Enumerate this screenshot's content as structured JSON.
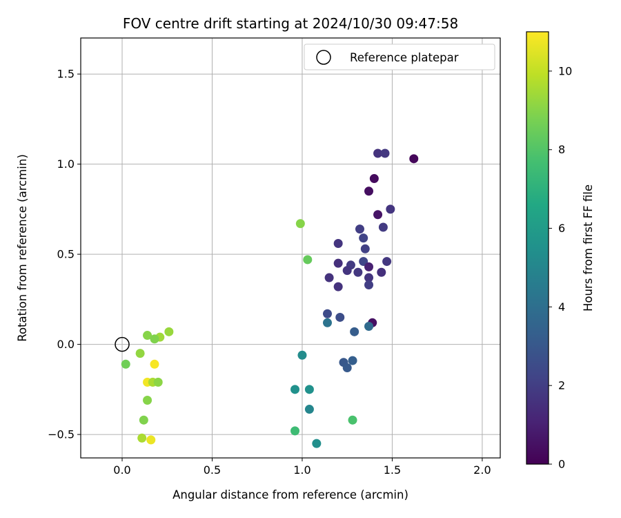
{
  "chart_data": {
    "type": "scatter",
    "title": "FOV centre drift starting at 2024/10/30 09:47:58",
    "xlabel": "Angular distance from reference (arcmin)",
    "ylabel": "Rotation from reference (arcmin)",
    "xlim": [
      -0.23,
      2.1
    ],
    "ylim": [
      -0.63,
      1.7
    ],
    "xticks": [
      0.0,
      0.5,
      1.0,
      1.5,
      2.0
    ],
    "xtick_labels": [
      "0.0",
      "0.5",
      "1.0",
      "1.5",
      "2.0"
    ],
    "yticks": [
      -0.5,
      0.0,
      0.5,
      1.0,
      1.5
    ],
    "ytick_labels": [
      "−0.5",
      "0.0",
      "0.5",
      "1.0",
      "1.5"
    ],
    "grid": true,
    "legend": {
      "position": "top-right",
      "entries": [
        "Reference platepar"
      ]
    },
    "reference_point": {
      "x": 0.0,
      "y": 0.0
    },
    "colorbar": {
      "label": "Hours from first FF file",
      "colormap": "viridis",
      "range": [
        0,
        11
      ],
      "ticks": [
        0,
        2,
        4,
        6,
        8,
        10
      ],
      "tick_labels": [
        "0",
        "2",
        "4",
        "6",
        "8",
        "10"
      ]
    },
    "points": [
      {
        "x": 1.62,
        "y": 1.03,
        "hours": 0.2
      },
      {
        "x": 1.4,
        "y": 0.92,
        "hours": 0.3
      },
      {
        "x": 1.37,
        "y": 0.85,
        "hours": 0.4
      },
      {
        "x": 1.42,
        "y": 0.72,
        "hours": 0.6
      },
      {
        "x": 1.39,
        "y": 0.12,
        "hours": 0.5
      },
      {
        "x": 1.42,
        "y": 1.06,
        "hours": 1.6
      },
      {
        "x": 1.46,
        "y": 1.06,
        "hours": 1.8
      },
      {
        "x": 1.49,
        "y": 0.75,
        "hours": 1.7
      },
      {
        "x": 1.45,
        "y": 0.65,
        "hours": 1.9
      },
      {
        "x": 1.32,
        "y": 0.64,
        "hours": 2.0
      },
      {
        "x": 1.34,
        "y": 0.59,
        "hours": 2.2
      },
      {
        "x": 1.2,
        "y": 0.56,
        "hours": 1.7
      },
      {
        "x": 1.35,
        "y": 0.53,
        "hours": 2.1
      },
      {
        "x": 1.47,
        "y": 0.46,
        "hours": 1.8
      },
      {
        "x": 1.34,
        "y": 0.46,
        "hours": 2.3
      },
      {
        "x": 1.2,
        "y": 0.45,
        "hours": 1.5
      },
      {
        "x": 1.27,
        "y": 0.44,
        "hours": 1.9
      },
      {
        "x": 1.37,
        "y": 0.43,
        "hours": 1.0
      },
      {
        "x": 1.25,
        "y": 0.41,
        "hours": 1.7
      },
      {
        "x": 1.31,
        "y": 0.4,
        "hours": 1.8
      },
      {
        "x": 1.44,
        "y": 0.4,
        "hours": 1.5
      },
      {
        "x": 1.15,
        "y": 0.37,
        "hours": 1.6
      },
      {
        "x": 1.37,
        "y": 0.37,
        "hours": 1.7
      },
      {
        "x": 1.37,
        "y": 0.33,
        "hours": 2.0
      },
      {
        "x": 1.2,
        "y": 0.32,
        "hours": 1.6
      },
      {
        "x": 1.14,
        "y": 0.17,
        "hours": 2.5
      },
      {
        "x": 1.21,
        "y": 0.15,
        "hours": 2.6
      },
      {
        "x": 1.14,
        "y": 0.12,
        "hours": 4.2
      },
      {
        "x": 1.37,
        "y": 0.1,
        "hours": 3.8
      },
      {
        "x": 1.29,
        "y": 0.07,
        "hours": 3.2
      },
      {
        "x": 1.0,
        "y": -0.06,
        "hours": 5.3
      },
      {
        "x": 1.23,
        "y": -0.1,
        "hours": 3.0
      },
      {
        "x": 1.28,
        "y": -0.09,
        "hours": 3.3
      },
      {
        "x": 1.25,
        "y": -0.13,
        "hours": 3.1
      },
      {
        "x": 0.96,
        "y": -0.25,
        "hours": 5.5
      },
      {
        "x": 1.04,
        "y": -0.25,
        "hours": 5.5
      },
      {
        "x": 1.04,
        "y": -0.36,
        "hours": 5.0
      },
      {
        "x": 1.28,
        "y": -0.42,
        "hours": 7.8
      },
      {
        "x": 0.96,
        "y": -0.48,
        "hours": 7.5
      },
      {
        "x": 1.08,
        "y": -0.55,
        "hours": 5.4
      },
      {
        "x": 0.99,
        "y": 0.67,
        "hours": 9.0
      },
      {
        "x": 1.03,
        "y": 0.47,
        "hours": 8.4
      },
      {
        "x": 0.26,
        "y": 0.07,
        "hours": 9.3
      },
      {
        "x": 0.14,
        "y": 0.05,
        "hours": 9.0
      },
      {
        "x": 0.21,
        "y": 0.04,
        "hours": 9.4
      },
      {
        "x": 0.18,
        "y": 0.03,
        "hours": 8.9
      },
      {
        "x": 0.1,
        "y": -0.05,
        "hours": 9.2
      },
      {
        "x": 0.02,
        "y": -0.11,
        "hours": 8.6
      },
      {
        "x": 0.18,
        "y": -0.11,
        "hours": 10.9
      },
      {
        "x": 0.14,
        "y": -0.21,
        "hours": 10.8
      },
      {
        "x": 0.17,
        "y": -0.21,
        "hours": 9.6
      },
      {
        "x": 0.2,
        "y": -0.21,
        "hours": 9.1
      },
      {
        "x": 0.14,
        "y": -0.31,
        "hours": 9.0
      },
      {
        "x": 0.12,
        "y": -0.42,
        "hours": 8.9
      },
      {
        "x": 0.11,
        "y": -0.52,
        "hours": 9.6
      },
      {
        "x": 0.16,
        "y": -0.53,
        "hours": 10.7
      }
    ]
  }
}
